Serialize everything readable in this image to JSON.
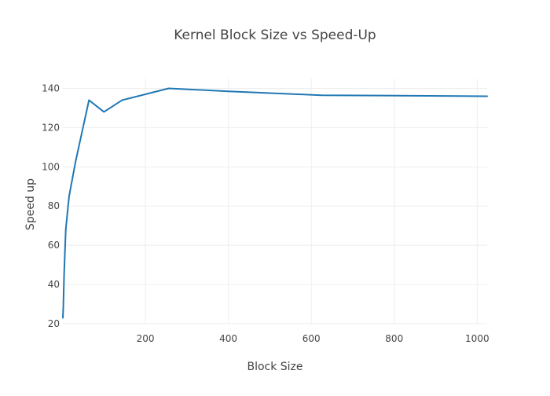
{
  "chart_data": {
    "type": "line",
    "title": "Kernel Block Size vs Speed-Up",
    "xlabel": "Block Size",
    "ylabel": "Speed up",
    "xlim": [
      1,
      1024
    ],
    "ylim": [
      20,
      145
    ],
    "x_ticks": [
      200,
      400,
      600,
      800,
      1000
    ],
    "y_ticks": [
      20,
      40,
      60,
      80,
      100,
      120,
      140
    ],
    "grid": true,
    "legend": "none",
    "series": [
      {
        "color": "#1f77b4",
        "x": [
          1,
          2,
          4,
          8,
          16,
          32,
          64,
          100,
          144,
          256,
          400,
          625,
          1024
        ],
        "y": [
          23,
          28,
          45,
          68,
          85,
          103,
          134,
          128,
          134,
          140,
          138.5,
          136.5,
          136
        ]
      }
    ]
  }
}
